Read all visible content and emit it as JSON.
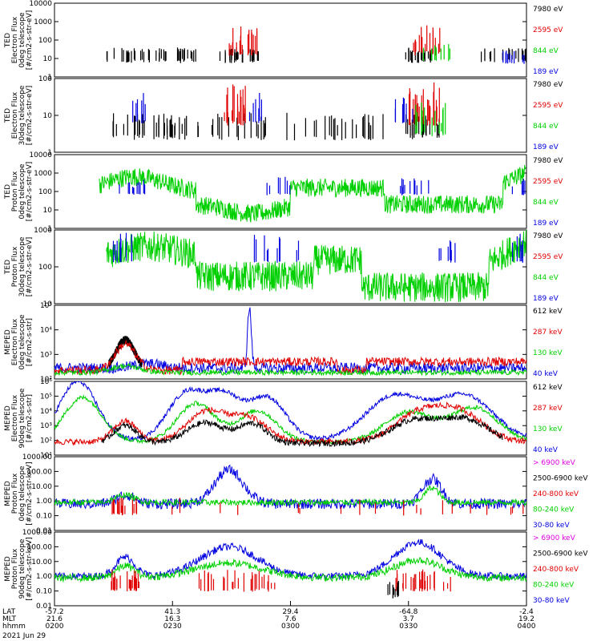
{
  "chart_data": {
    "type": "line",
    "x_axis": {
      "rows": [
        {
          "label": "LAT",
          "values": [
            "-57.2",
            "41.3",
            "29.4",
            "-64.8",
            "-2.4"
          ]
        },
        {
          "label": "MLT",
          "values": [
            "21.6",
            "16.3",
            "7.6",
            "3.7",
            "19.2"
          ]
        },
        {
          "label": "hhmm",
          "values": [
            "0200",
            "0230",
            "0300",
            "0330",
            "0400"
          ]
        }
      ],
      "date": "2021 Jun 29"
    },
    "panels": [
      {
        "ylabel": [
          "TED",
          "Electron Flux",
          "0deg telescope",
          "[#/cm2-s-str-eV]"
        ],
        "yticks": [
          "10000",
          "1000",
          "100",
          "10",
          "1"
        ],
        "ylog": [
          0,
          4
        ],
        "legend": [
          {
            "label": "7980 eV",
            "color": "#000000"
          },
          {
            "label": "2595 eV",
            "color": "#e00000"
          },
          {
            "label": "844 eV",
            "color": "#00d000"
          },
          {
            "label": "189 eV",
            "color": "#0000e0"
          }
        ]
      },
      {
        "ylabel": [
          "TED",
          "Electron Flux",
          "30deg telescope",
          "[#/cm2-s-str-eV]"
        ],
        "yticks": [
          "100",
          "10",
          "1"
        ],
        "ylog": [
          0,
          2.8
        ],
        "legend": [
          {
            "label": "7980 eV",
            "color": "#000000"
          },
          {
            "label": "2595 eV",
            "color": "#e00000"
          },
          {
            "label": "844 eV",
            "color": "#00d000"
          },
          {
            "label": "189 eV",
            "color": "#0000e0"
          }
        ]
      },
      {
        "ylabel": [
          "TED",
          "Proton Flux",
          "0deg telescope",
          "[#/cm2-s-str-eV]"
        ],
        "yticks": [
          "10000",
          "1000",
          "100",
          "10",
          "1"
        ],
        "ylog": [
          0,
          4
        ],
        "legend": [
          {
            "label": "7980 eV",
            "color": "#000000"
          },
          {
            "label": "2595 eV",
            "color": "#e00000"
          },
          {
            "label": "844 eV",
            "color": "#00d000"
          },
          {
            "label": "189 eV",
            "color": "#0000e0"
          }
        ]
      },
      {
        "ylabel": [
          "TED",
          "Proton Flux",
          "30deg telescope",
          "[#/cm2-s-str-eV]"
        ],
        "yticks": [
          "1000",
          "100",
          "10"
        ],
        "ylog": [
          0.3,
          3
        ],
        "legend": [
          {
            "label": "7980 eV",
            "color": "#000000"
          },
          {
            "label": "2595 eV",
            "color": "#e00000"
          },
          {
            "label": "844 eV",
            "color": "#00d000"
          },
          {
            "label": "189 eV",
            "color": "#0000e0"
          }
        ]
      },
      {
        "ylabel": [
          "MEPED",
          "Electron Flux",
          "0deg telescope",
          "[#/cm2-s-str]"
        ],
        "yticks": [
          "10⁵",
          "10⁴",
          "10³",
          "10²"
        ],
        "ylog": [
          1.6,
          5
        ],
        "legend": [
          {
            "label": "612 keV",
            "color": "#000000"
          },
          {
            "label": "287 keV",
            "color": "#e00000"
          },
          {
            "label": "130 keV",
            "color": "#00d000"
          },
          {
            "label": "40 keV",
            "color": "#0000e0"
          }
        ]
      },
      {
        "ylabel": [
          "MEPED",
          "Electron Flux",
          "90deg telescope",
          "[#/cm2-s-str]"
        ],
        "yticks": [
          "10⁶",
          "10⁵",
          "10⁴",
          "10³",
          "10²",
          "10¹"
        ],
        "ylog": [
          1,
          6
        ],
        "legend": [
          {
            "label": "612 keV",
            "color": "#000000"
          },
          {
            "label": "287 keV",
            "color": "#e00000"
          },
          {
            "label": "130 keV",
            "color": "#00d000"
          },
          {
            "label": "40 keV",
            "color": "#0000e0"
          }
        ]
      },
      {
        "ylabel": [
          "MEPED",
          "Proton Flux",
          "0deg telescope",
          "[#/cm2-s-str-keV]"
        ],
        "yticks": [
          "1000.00",
          "100.00",
          "10.00",
          "1.00",
          "0.10",
          "0.01"
        ],
        "ylog": [
          -2,
          3
        ],
        "legend": [
          {
            "label": "> 6900 keV",
            "color": "#e000e0"
          },
          {
            "label": "2500-6900 keV",
            "color": "#000000"
          },
          {
            "label": "240-800 keV",
            "color": "#e00000"
          },
          {
            "label": "80-240 keV",
            "color": "#00d000"
          },
          {
            "label": "30-80 keV",
            "color": "#0000e0"
          }
        ]
      },
      {
        "ylabel": [
          "MEPED",
          "Proton Flux",
          "90deg telescope",
          "[#/cm2-s-str-keV]"
        ],
        "yticks": [
          "1000.00",
          "100.00",
          "10.00",
          "1.00",
          "0.10",
          "0.01"
        ],
        "ylog": [
          -2,
          3
        ],
        "legend": [
          {
            "label": "> 6900 keV",
            "color": "#e000e0"
          },
          {
            "label": "2500-6900 keV",
            "color": "#000000"
          },
          {
            "label": "240-800 keV",
            "color": "#e00000"
          },
          {
            "label": "80-240 keV",
            "color": "#00d000"
          },
          {
            "label": "30-80 keV",
            "color": "#0000e0"
          }
        ]
      }
    ]
  }
}
